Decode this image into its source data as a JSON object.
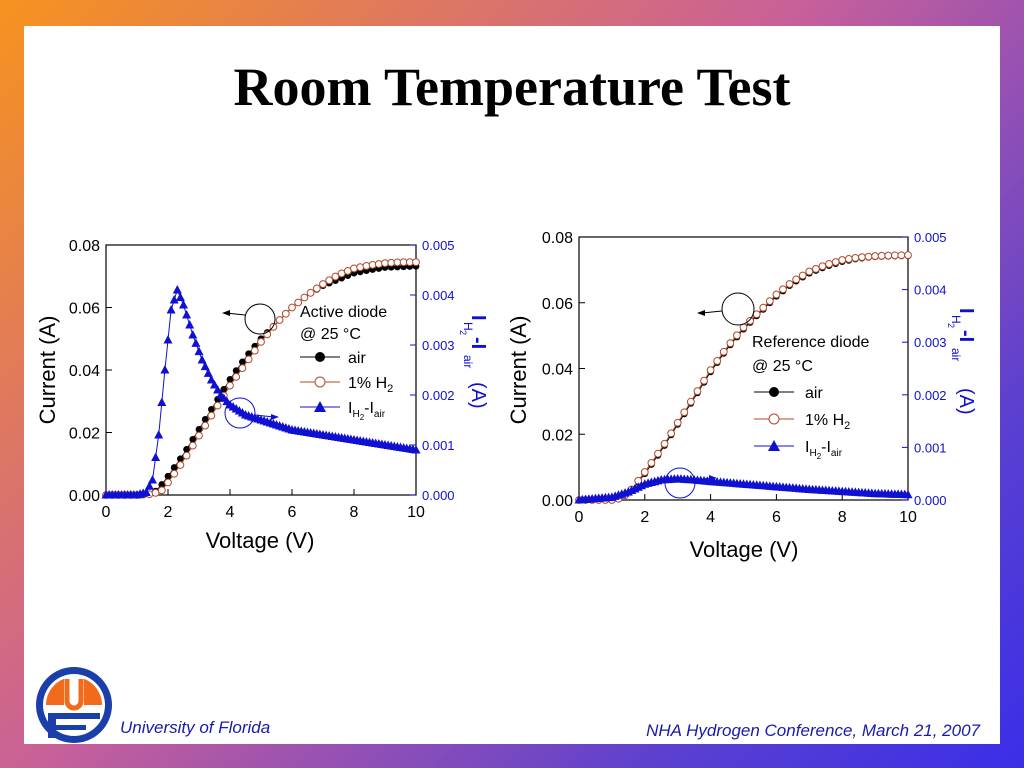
{
  "slide": {
    "title": "Room Temperature Test",
    "footer_left": "University of Florida",
    "footer_right": "NHA Hydrogen Conference, March 21, 2007"
  },
  "colors": {
    "air": "#000000",
    "h2": "#b04a2a",
    "diff": "#1010d0",
    "axis_right": "#1010d0"
  },
  "chart_data": [
    {
      "type": "scatter",
      "xlabel": "Voltage (V)",
      "ylabel": "Current (A)",
      "y2label_main": "I",
      "y2label_sub1": "H",
      "y2label_subsub": "2",
      "y2label_mid": "-I",
      "y2label_sub2": "air",
      "y2label_unit": "(A)",
      "xlim": [
        0,
        10
      ],
      "ylim": [
        0,
        0.08
      ],
      "y2lim": [
        0,
        0.005
      ],
      "xticks": [
        "0",
        "2",
        "4",
        "6",
        "8",
        "10"
      ],
      "yticks": [
        "0.00",
        "0.02",
        "0.04",
        "0.06",
        "0.08"
      ],
      "y2ticks": [
        "0.000",
        "0.001",
        "0.002",
        "0.003",
        "0.004",
        "0.005"
      ],
      "legend_title_1": "Active diode",
      "legend_title_2": "@ 25 °C",
      "legend_air": "air",
      "legend_h2": "1% H",
      "legend_h2_sub": "2",
      "legend_diff_i": "I",
      "legend_diff_h": "H",
      "legend_diff_2": "2",
      "legend_diff_mid": "-I",
      "legend_diff_air": "air",
      "legend_position": "right",
      "series": [
        {
          "name": "air",
          "axis": "left",
          "marker": "filled-circle",
          "points": [
            [
              0,
              0
            ],
            [
              1,
              0
            ],
            [
              1.5,
              0.0005
            ],
            [
              1.7,
              0.002
            ],
            [
              2,
              0.006
            ],
            [
              2.5,
              0.013
            ],
            [
              3,
              0.021
            ],
            [
              3.5,
              0.029
            ],
            [
              4,
              0.037
            ],
            [
              4.5,
              0.044
            ],
            [
              5,
              0.05
            ],
            [
              5.5,
              0.055
            ],
            [
              6,
              0.06
            ],
            [
              6.5,
              0.064
            ],
            [
              7,
              0.067
            ],
            [
              7.5,
              0.069
            ],
            [
              8,
              0.071
            ],
            [
              8.5,
              0.072
            ],
            [
              9,
              0.0728
            ],
            [
              9.5,
              0.073
            ],
            [
              10,
              0.0732
            ]
          ]
        },
        {
          "name": "1% H2",
          "axis": "left",
          "marker": "open-circle",
          "points": [
            [
              0,
              0
            ],
            [
              1,
              0
            ],
            [
              1.5,
              0.0003
            ],
            [
              1.8,
              0.0015
            ],
            [
              2,
              0.004
            ],
            [
              2.5,
              0.011
            ],
            [
              3,
              0.019
            ],
            [
              3.5,
              0.027
            ],
            [
              4,
              0.035
            ],
            [
              4.5,
              0.042
            ],
            [
              5,
              0.049
            ],
            [
              5.5,
              0.055
            ],
            [
              6,
              0.06
            ],
            [
              6.5,
              0.064
            ],
            [
              7,
              0.0675
            ],
            [
              7.5,
              0.0705
            ],
            [
              8,
              0.0725
            ],
            [
              8.5,
              0.0735
            ],
            [
              9,
              0.0742
            ],
            [
              9.5,
              0.0745
            ],
            [
              10,
              0.0745
            ]
          ]
        },
        {
          "name": "IH2-Iair",
          "axis": "right",
          "marker": "triangle",
          "points": [
            [
              0,
              0
            ],
            [
              1,
              0
            ],
            [
              1.3,
              5e-05
            ],
            [
              1.5,
              0.0003
            ],
            [
              1.7,
              0.0012
            ],
            [
              1.9,
              0.0025
            ],
            [
              2.1,
              0.0037
            ],
            [
              2.3,
              0.0041
            ],
            [
              2.5,
              0.0038
            ],
            [
              2.8,
              0.0032
            ],
            [
              3.1,
              0.0027
            ],
            [
              3.4,
              0.0023
            ],
            [
              3.7,
              0.002
            ],
            [
              4,
              0.0018
            ],
            [
              4.5,
              0.0016
            ],
            [
              5,
              0.0015
            ],
            [
              5.5,
              0.0014
            ],
            [
              6,
              0.0013
            ],
            [
              6.5,
              0.00125
            ],
            [
              7,
              0.0012
            ],
            [
              7.5,
              0.00115
            ],
            [
              8,
              0.0011
            ],
            [
              8.5,
              0.00105
            ],
            [
              9,
              0.001
            ],
            [
              9.5,
              0.00095
            ],
            [
              10,
              0.0009
            ]
          ]
        }
      ]
    },
    {
      "type": "scatter",
      "xlabel": "Voltage (V)",
      "ylabel": "Current (A)",
      "y2label_main": "I",
      "y2label_sub1": "H",
      "y2label_subsub": "2",
      "y2label_mid": "-I",
      "y2label_sub2": "air",
      "y2label_unit": "(A)",
      "xlim": [
        0,
        10
      ],
      "ylim": [
        0,
        0.08
      ],
      "y2lim": [
        0,
        0.005
      ],
      "xticks": [
        "0",
        "2",
        "4",
        "6",
        "8",
        "10"
      ],
      "yticks": [
        "0.00",
        "0.02",
        "0.04",
        "0.06",
        "0.08"
      ],
      "y2ticks": [
        "0.000",
        "0.001",
        "0.002",
        "0.003",
        "0.004",
        "0.005"
      ],
      "legend_title_1": "Reference diode",
      "legend_title_2": "@ 25 °C",
      "legend_air": "air",
      "legend_h2": "1% H",
      "legend_h2_sub": "2",
      "legend_diff_i": "I",
      "legend_diff_h": "H",
      "legend_diff_2": "2",
      "legend_diff_mid": "-I",
      "legend_diff_air": "air",
      "legend_position": "right",
      "series": [
        {
          "name": "air",
          "axis": "left",
          "marker": "filled-circle",
          "points": [
            [
              0,
              0
            ],
            [
              1,
              0
            ],
            [
              1.3,
              0.0005
            ],
            [
              1.6,
              0.003
            ],
            [
              2,
              0.008
            ],
            [
              2.5,
              0.015
            ],
            [
              3,
              0.023
            ],
            [
              3.5,
              0.031
            ],
            [
              4,
              0.039
            ],
            [
              4.5,
              0.046
            ],
            [
              5,
              0.052
            ],
            [
              5.5,
              0.057
            ],
            [
              6,
              0.062
            ],
            [
              6.5,
              0.066
            ],
            [
              7,
              0.069
            ],
            [
              7.5,
              0.071
            ],
            [
              8,
              0.0725
            ],
            [
              8.5,
              0.0735
            ],
            [
              9,
              0.074
            ],
            [
              9.5,
              0.0742
            ],
            [
              10,
              0.0743
            ]
          ]
        },
        {
          "name": "1% H2",
          "axis": "left",
          "marker": "open-circle",
          "points": [
            [
              0,
              0
            ],
            [
              1,
              0
            ],
            [
              1.3,
              0.0006
            ],
            [
              1.6,
              0.0032
            ],
            [
              2,
              0.0085
            ],
            [
              2.5,
              0.0155
            ],
            [
              3,
              0.0235
            ],
            [
              3.5,
              0.0315
            ],
            [
              4,
              0.0395
            ],
            [
              4.5,
              0.0465
            ],
            [
              5,
              0.0525
            ],
            [
              5.5,
              0.0575
            ],
            [
              6,
              0.0625
            ],
            [
              6.5,
              0.0665
            ],
            [
              7,
              0.0695
            ],
            [
              7.5,
              0.0715
            ],
            [
              8,
              0.073
            ],
            [
              8.5,
              0.0738
            ],
            [
              9,
              0.0742
            ],
            [
              9.5,
              0.0744
            ],
            [
              10,
              0.0745
            ]
          ]
        },
        {
          "name": "IH2-Iair",
          "axis": "right",
          "marker": "triangle",
          "points": [
            [
              0,
              0
            ],
            [
              1,
              5e-05
            ],
            [
              1.5,
              0.00015
            ],
            [
              2,
              0.0003
            ],
            [
              2.5,
              0.00038
            ],
            [
              3,
              0.0004
            ],
            [
              3.5,
              0.00038
            ],
            [
              4,
              0.00035
            ],
            [
              5,
              0.0003
            ],
            [
              6,
              0.00025
            ],
            [
              7,
              0.0002
            ],
            [
              8,
              0.00016
            ],
            [
              9,
              0.00012
            ],
            [
              10,
              0.0001
            ]
          ]
        }
      ]
    }
  ]
}
